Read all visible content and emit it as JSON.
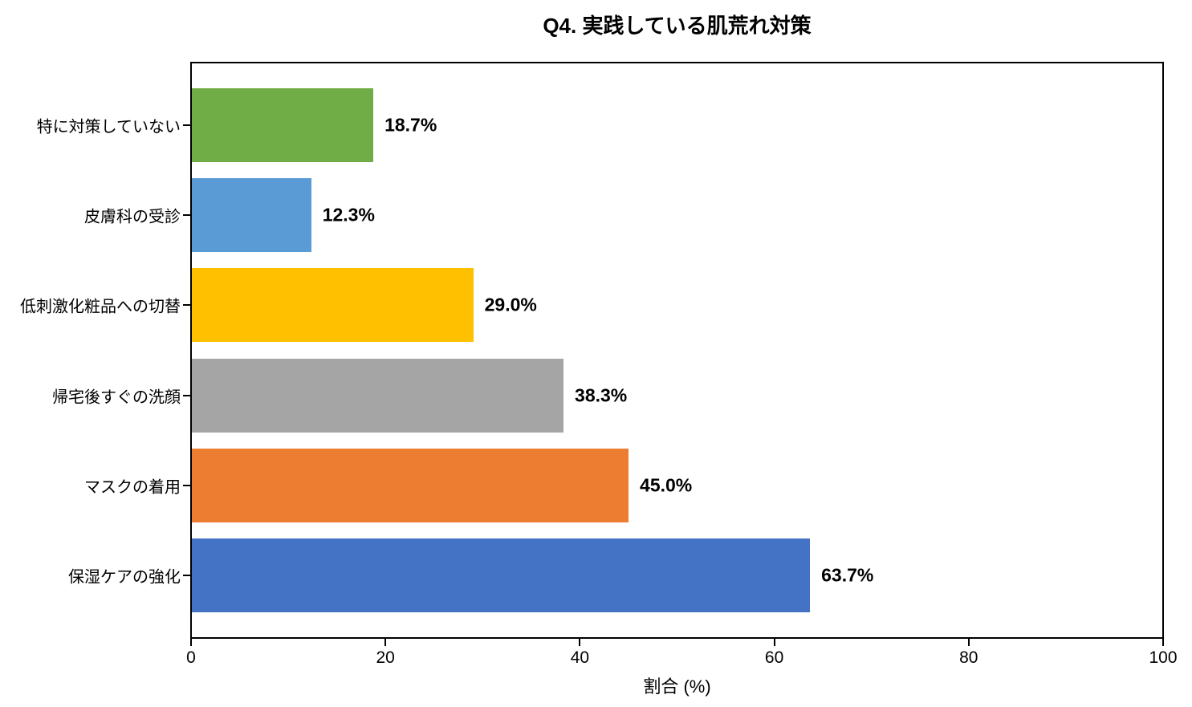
{
  "chart_data": {
    "type": "bar",
    "orientation": "horizontal",
    "title": "Q4. 実践している肌荒れ対策",
    "xlabel": "割合 (%)",
    "ylabel": "",
    "xlim": [
      0,
      100
    ],
    "xticks": [
      "0",
      "20",
      "40",
      "60",
      "80",
      "100"
    ],
    "grid": false,
    "legend": false,
    "categories_top_to_bottom": [
      "特に対策していない",
      "皮膚科の受診",
      "低刺激化粧品への切替",
      "帰宅後すぐの洗顔",
      "マスクの着用",
      "保湿ケアの強化"
    ],
    "values": [
      18.7,
      12.3,
      29.0,
      38.3,
      45.0,
      63.7
    ],
    "value_labels": [
      "18.7%",
      "12.3%",
      "29.0%",
      "38.3%",
      "45.0%",
      "63.7%"
    ],
    "bar_colors": [
      "#70AD47",
      "#5B9BD5",
      "#FFC000",
      "#A5A5A5",
      "#ED7D31",
      "#4472C4"
    ],
    "text_color": "#000000",
    "spine_color": "#000000",
    "background_color": "#ffffff"
  }
}
